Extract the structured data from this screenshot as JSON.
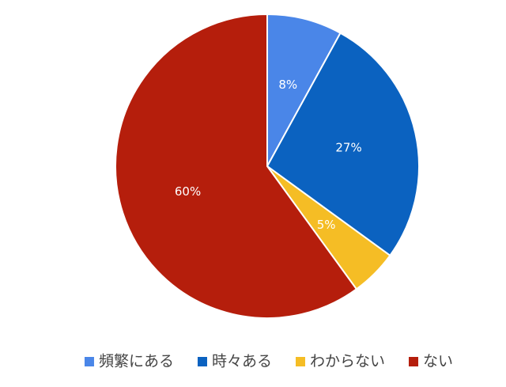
{
  "chart_data": {
    "type": "pie",
    "categories": [
      "頻繁にある",
      "時々ある",
      "わからない",
      "ない"
    ],
    "values": [
      8,
      27,
      5,
      60
    ],
    "value_labels": [
      "8%",
      "27%",
      "5%",
      "60%"
    ],
    "colors": [
      "#4a86e8",
      "#0b62c0",
      "#f5bd25",
      "#b51e0c"
    ],
    "legend": "bottom"
  }
}
